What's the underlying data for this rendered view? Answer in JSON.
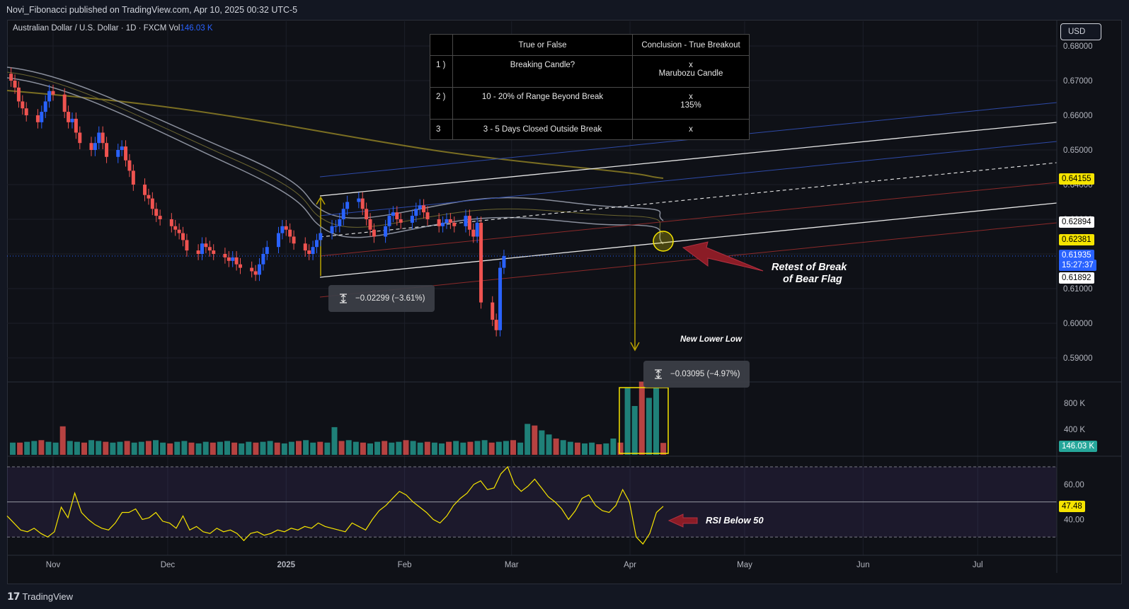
{
  "header": {
    "published": "Novi_Fibonacci published on TradingView.com, Apr 10, 2025 00:32 UTC-5"
  },
  "legend": {
    "symbol": "Australian Dollar / U.S. Dollar · 1D · FXCM",
    "vol_label": "Vol",
    "vol_value": "146.03 K"
  },
  "currency_button": "USD",
  "footer": {
    "brand": "TradingView"
  },
  "table": {
    "headers": [
      "True or False",
      "Conclusion - True Breakout"
    ],
    "rows": [
      {
        "num": "1 )",
        "criterion": "Breaking Candle?",
        "result": "x",
        "detail": "Marubozu Candle"
      },
      {
        "num": "2 )",
        "criterion": "10 - 20% of Range Beyond Break",
        "result": "x",
        "detail": "135%"
      },
      {
        "num": "3",
        "criterion": "3 - 5 Days Closed Outside Break",
        "result": "x",
        "detail": ""
      }
    ]
  },
  "annotations": {
    "measure_1": "−0.02299 (−3.61%)",
    "measure_2": "−0.03095 (−4.97%)",
    "retest_line1": "Retest of Break",
    "retest_line2": "of Bear Flag",
    "new_lower_low": "New Lower Low",
    "rsi_note": "RSI Below 50"
  },
  "price_tags": [
    {
      "label": "0.64155",
      "bg": "#f5e400",
      "fg": "#000000"
    },
    {
      "label": "0.62894",
      "bg": "#ffffff",
      "fg": "#000000"
    },
    {
      "label": "0.62381",
      "bg": "#f5e400",
      "fg": "#000000"
    },
    {
      "label": "0.61935",
      "bg": "#2962ff",
      "fg": "#ffffff"
    },
    {
      "label": "15:27:37",
      "bg": "#2962ff",
      "fg": "#ffffff"
    },
    {
      "label": "0.61892",
      "bg": "#ffffff",
      "fg": "#000000"
    }
  ],
  "volume_tag": {
    "label": "146.03 K",
    "bg": "#26a69a"
  },
  "rsi_tag": {
    "label": "47.48",
    "bg": "#f5e400"
  },
  "colors": {
    "up": "#2962ff",
    "down": "#ef5350",
    "vol_up": "#26a69a",
    "vol_down": "#ef5350",
    "rsi": "#f5e400"
  },
  "chart_data": [
    {
      "type": "candlestick",
      "title": "Australian Dollar / U.S. Dollar · 1D · FXCM",
      "y_axis_ticks": [
        "0.68000",
        "0.67000",
        "0.66000",
        "0.65000",
        "0.64000",
        "0.63000",
        "0.62000",
        "0.61000",
        "0.60000",
        "0.59000"
      ],
      "ylim": [
        0.5837,
        0.6873
      ],
      "x_axis_ticks": [
        "Nov",
        "Dec",
        "2025",
        "Feb",
        "Mar",
        "Apr",
        "May",
        "Jun",
        "Jul"
      ],
      "x_tick_dates": [
        "2024-11-01",
        "2024-12-01",
        "2025-01-01",
        "2025-02-01",
        "2025-03-01",
        "2025-04-01",
        "2025-05-01",
        "2025-06-01",
        "2025-07-01"
      ],
      "series": [
        {
          "dates_start": "2024-10-21",
          "closes_approx": [
            0.67,
            0.668,
            0.664,
            0.662,
            0.66,
            0.658,
            0.661,
            0.664,
            0.667,
            0.666,
            0.661,
            0.658,
            0.659,
            0.655,
            0.652,
            0.65,
            0.652,
            0.655,
            0.652,
            0.648,
            0.65,
            0.651,
            0.647,
            0.644,
            0.64,
            0.637,
            0.636,
            0.633,
            0.631,
            0.63,
            0.628,
            0.627,
            0.626,
            0.624,
            0.621,
            0.62,
            0.623,
            0.622,
            0.621,
            0.62,
            0.619,
            0.618,
            0.619,
            0.617,
            0.616,
            0.615,
            0.614,
            0.617,
            0.62,
            0.622,
            0.626,
            0.628,
            0.627,
            0.625,
            0.623,
            0.621,
            0.62,
            0.622,
            0.624,
            0.626,
            0.628,
            0.628,
            0.63,
            0.633,
            0.635,
            0.636,
            0.633,
            0.63,
            0.627,
            0.625,
            0.628,
            0.631,
            0.632,
            0.63,
            0.629,
            0.631,
            0.633,
            0.634,
            0.632,
            0.63,
            0.628,
            0.629,
            0.63,
            0.629,
            0.628,
            0.631,
            0.627,
            0.625,
            0.629,
            0.606,
            0.601,
            0.598,
            0.616,
            0.6194
          ]
        },
        {
          "name": "Last",
          "value": 0.61935
        }
      ],
      "horizontal_levels": [
        0.64155,
        0.62894,
        0.62381,
        0.61935,
        0.61892
      ]
    },
    {
      "type": "bar",
      "title": "Volume",
      "y_axis_ticks": [
        "800 K",
        "400 K"
      ],
      "last_value": "146.03 K",
      "values_approx_k": [
        150,
        150,
        160,
        170,
        180,
        160,
        150,
        350,
        170,
        160,
        150,
        180,
        170,
        160,
        150,
        160,
        170,
        150,
        160,
        170,
        180,
        150,
        140,
        160,
        170,
        150,
        140,
        160,
        150,
        160,
        170,
        150,
        140,
        160,
        150,
        160,
        170,
        150,
        140,
        160,
        170,
        180,
        150,
        160,
        150,
        340,
        170,
        180,
        160,
        150,
        140,
        160,
        170,
        150,
        160,
        180,
        170,
        150,
        160,
        150,
        140,
        160,
        170,
        150,
        160,
        170,
        180,
        150,
        160,
        170,
        180,
        150,
        380,
        360,
        300,
        250,
        200,
        180,
        160,
        150,
        140,
        150,
        130,
        140,
        200,
        150,
        820,
        600,
        900,
        700,
        820,
        146
      ]
    },
    {
      "type": "line",
      "title": "RSI",
      "y_axis_ticks": [
        "60.00",
        "40.00"
      ],
      "ylim": [
        20,
        80
      ],
      "bands": [
        70,
        50,
        30
      ],
      "last_value": 47.48,
      "values_approx": [
        42,
        38,
        34,
        33,
        35,
        32,
        30,
        33,
        47,
        41,
        55,
        44,
        40,
        37,
        35,
        34,
        38,
        44,
        44,
        46,
        40,
        41,
        44,
        39,
        38,
        35,
        42,
        34,
        36,
        33,
        32,
        35,
        33,
        34,
        32,
        28,
        32,
        33,
        31,
        32,
        34,
        33,
        35,
        34,
        36,
        35,
        38,
        36,
        35,
        34,
        33,
        38,
        36,
        34,
        40,
        45,
        48,
        52,
        56,
        54,
        50,
        47,
        44,
        40,
        38,
        42,
        48,
        52,
        55,
        60,
        62,
        57,
        58,
        66,
        70,
        60,
        56,
        59,
        63,
        58,
        53,
        50,
        46,
        40,
        45,
        52,
        54,
        48,
        45,
        44,
        48,
        57,
        50,
        30,
        26,
        32,
        44,
        47.48
      ]
    }
  ]
}
